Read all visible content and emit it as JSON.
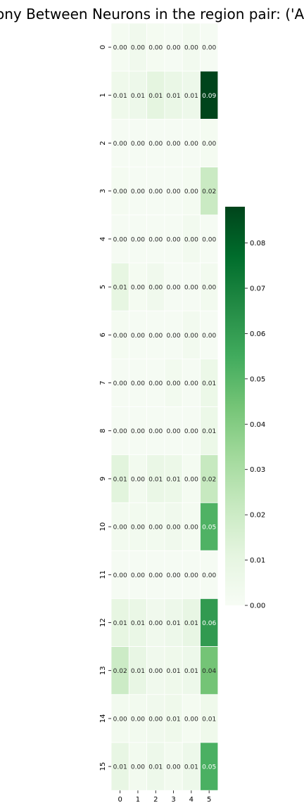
{
  "chart_data": {
    "type": "heatmap",
    "title": "rony Between Neurons in the region pair: ('AC",
    "x_categories": [
      "0",
      "1",
      "2",
      "3",
      "4",
      "5"
    ],
    "y_categories": [
      "0",
      "1",
      "2",
      "3",
      "4",
      "5",
      "6",
      "7",
      "8",
      "9",
      "10",
      "11",
      "12",
      "13",
      "14",
      "15"
    ],
    "values": [
      [
        0.002,
        0.004,
        0.002,
        0.001,
        0.003,
        0.001
      ],
      [
        0.005,
        0.006,
        0.011,
        0.008,
        0.006,
        0.088
      ],
      [
        0.001,
        0.001,
        0.001,
        0.001,
        0.001,
        0.002
      ],
      [
        0.002,
        0.001,
        0.001,
        0.001,
        0.002,
        0.021
      ],
      [
        0.001,
        0.001,
        0.001,
        0.001,
        0.003,
        0.001
      ],
      [
        0.01,
        0.002,
        0.004,
        0.001,
        0.001,
        0.003
      ],
      [
        0.002,
        0.001,
        0.001,
        0.001,
        0.003,
        0.001
      ],
      [
        0.001,
        0.001,
        0.001,
        0.003,
        0.001,
        0.007
      ],
      [
        0.001,
        0.001,
        0.001,
        0.001,
        0.001,
        0.007
      ],
      [
        0.012,
        0.003,
        0.008,
        0.007,
        0.002,
        0.022
      ],
      [
        0.003,
        0.003,
        0.003,
        0.004,
        0.002,
        0.052
      ],
      [
        0.001,
        0.001,
        0.001,
        0.001,
        0.001,
        0.001
      ],
      [
        0.01,
        0.008,
        0.004,
        0.006,
        0.009,
        0.061
      ],
      [
        0.02,
        0.009,
        0.004,
        0.005,
        0.006,
        0.044
      ],
      [
        0.003,
        0.003,
        0.004,
        0.005,
        0.002,
        0.005
      ],
      [
        0.009,
        0.003,
        0.006,
        0.003,
        0.006,
        0.053
      ]
    ],
    "cell_labels": [
      [
        "0.00",
        "0.00",
        "0.00",
        "0.00",
        "0.00",
        "0.00"
      ],
      [
        "0.01",
        "0.01",
        "0.01",
        "0.01",
        "0.01",
        "0.09"
      ],
      [
        "0.00",
        "0.00",
        "0.00",
        "0.00",
        "0.00",
        "0.00"
      ],
      [
        "0.00",
        "0.00",
        "0.00",
        "0.00",
        "0.00",
        "0.02"
      ],
      [
        "0.00",
        "0.00",
        "0.00",
        "0.00",
        "0.00",
        "0.00"
      ],
      [
        "0.01",
        "0.00",
        "0.00",
        "0.00",
        "0.00",
        "0.00"
      ],
      [
        "0.00",
        "0.00",
        "0.00",
        "0.00",
        "0.00",
        "0.00"
      ],
      [
        "0.00",
        "0.00",
        "0.00",
        "0.00",
        "0.00",
        "0.01"
      ],
      [
        "0.00",
        "0.00",
        "0.00",
        "0.00",
        "0.00",
        "0.01"
      ],
      [
        "0.01",
        "0.00",
        "0.01",
        "0.01",
        "0.00",
        "0.02"
      ],
      [
        "0.00",
        "0.00",
        "0.00",
        "0.00",
        "0.00",
        "0.05"
      ],
      [
        "0.00",
        "0.00",
        "0.00",
        "0.00",
        "0.00",
        "0.00"
      ],
      [
        "0.01",
        "0.01",
        "0.00",
        "0.01",
        "0.01",
        "0.06"
      ],
      [
        "0.02",
        "0.01",
        "0.00",
        "0.01",
        "0.01",
        "0.04"
      ],
      [
        "0.00",
        "0.00",
        "0.00",
        "0.01",
        "0.00",
        "0.01"
      ],
      [
        "0.01",
        "0.00",
        "0.01",
        "0.00",
        "0.01",
        "0.05"
      ]
    ],
    "colorbar": {
      "min": 0.0,
      "max": 0.088,
      "ticks": [
        "0.00",
        "0.01",
        "0.02",
        "0.03",
        "0.04",
        "0.05",
        "0.06",
        "0.07",
        "0.08"
      ],
      "colormap": [
        "#f7fcf5",
        "#e5f5e0",
        "#c7e9c0",
        "#a1d99b",
        "#74c476",
        "#41ab5d",
        "#238b45",
        "#006d2c",
        "#00441b"
      ]
    },
    "grid": false
  }
}
